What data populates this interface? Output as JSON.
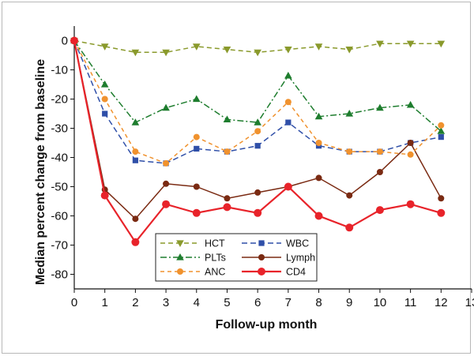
{
  "chart_data": {
    "type": "line",
    "title": "",
    "xlabel": "Follow-up month",
    "ylabel": "Median percent change from baseline",
    "xlim": [
      0,
      13
    ],
    "ylim": [
      -85,
      5
    ],
    "x_ticks": [
      0,
      1,
      2,
      3,
      4,
      5,
      6,
      7,
      8,
      9,
      10,
      11,
      12,
      13
    ],
    "y_ticks": [
      0,
      -10,
      -20,
      -30,
      -40,
      -50,
      -60,
      -70,
      -80
    ],
    "x": [
      0,
      1,
      2,
      3,
      4,
      5,
      6,
      7,
      8,
      9,
      10,
      11,
      12
    ],
    "legend_position": "bottom-center",
    "grid": false,
    "series": [
      {
        "name": "HCT",
        "color": "#8a9a2c",
        "dash": "6,4",
        "marker": "triangle-down",
        "values": [
          0,
          -2,
          -4,
          -4,
          -2,
          -3,
          -4,
          -3,
          -2,
          -3,
          -1,
          -1,
          -1
        ]
      },
      {
        "name": "WBC",
        "color": "#2f4fa8",
        "dash": "7,4",
        "marker": "square",
        "values": [
          0,
          -25,
          -41,
          -42,
          -37,
          -38,
          -36,
          -28,
          -36,
          -38,
          -38,
          -35,
          -33
        ]
      },
      {
        "name": "PLTs",
        "color": "#1e7d2e",
        "dash": "8,3,2,3",
        "marker": "triangle-up",
        "values": [
          0,
          -15,
          -28,
          -23,
          -20,
          -27,
          -28,
          -12,
          -26,
          -25,
          -23,
          -22,
          -31
        ]
      },
      {
        "name": "Lymph",
        "color": "#7a2a12",
        "dash": "",
        "marker": "circle",
        "values": [
          0,
          -51,
          -61,
          -49,
          -50,
          -54,
          -52,
          -50,
          -47,
          -53,
          -45,
          -35,
          -54
        ]
      },
      {
        "name": "ANC",
        "color": "#f0922e",
        "dash": "5,4",
        "marker": "circle",
        "values": [
          0,
          -20,
          -38,
          -42,
          -33,
          -38,
          -31,
          -21,
          -35,
          -38,
          -38,
          -39,
          -29
        ]
      },
      {
        "name": "CD4",
        "color": "#e8232a",
        "dash": "",
        "marker": "circle-large",
        "values": [
          0,
          -53,
          -69,
          -56,
          -59,
          -57,
          -59,
          -50,
          -60,
          -64,
          -58,
          -56,
          -59
        ]
      }
    ]
  }
}
